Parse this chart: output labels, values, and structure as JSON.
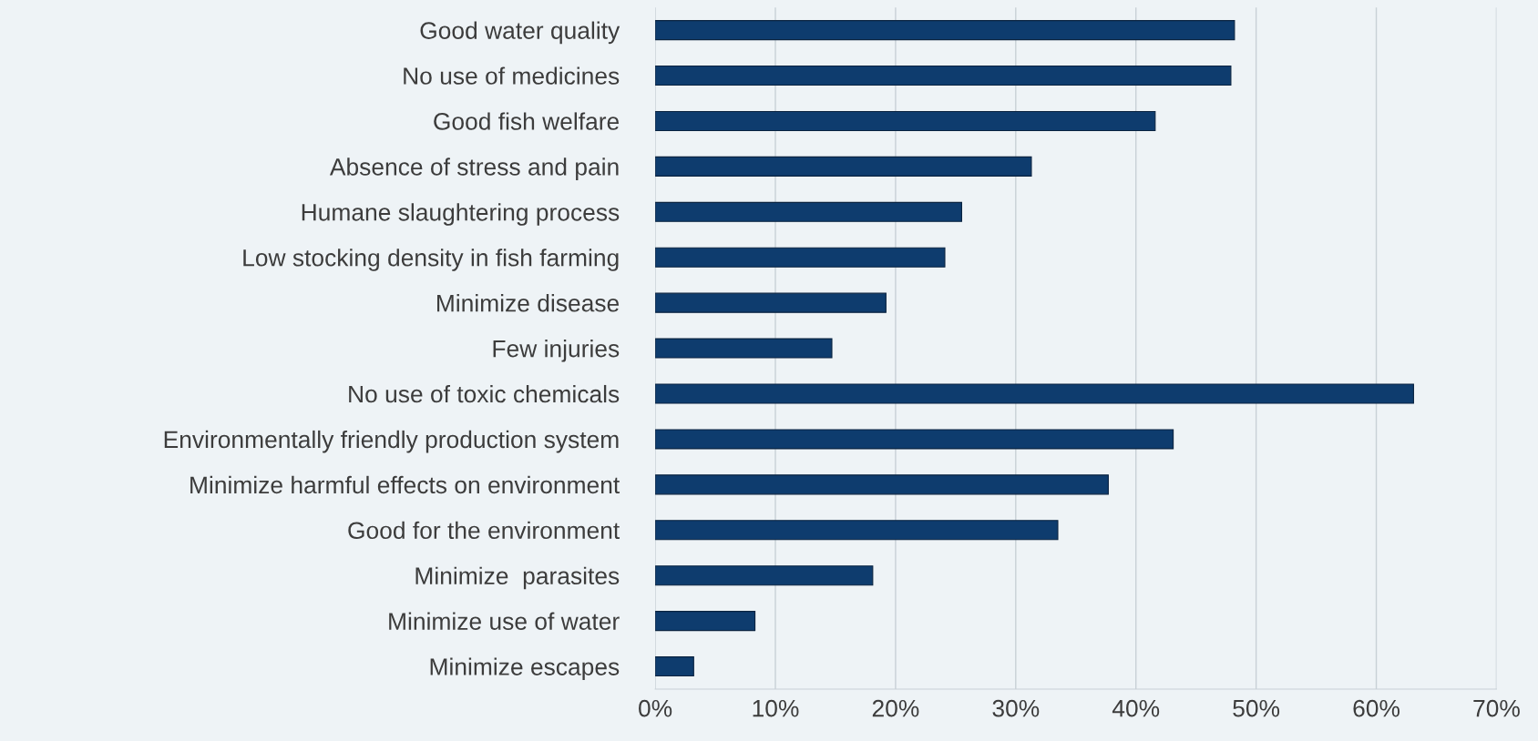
{
  "chart_data": {
    "type": "bar",
    "orientation": "horizontal",
    "categories": [
      "Good water quality",
      "No use of medicines",
      "Good fish welfare",
      "Absence of stress and pain",
      "Humane slaughtering process",
      "Low stocking density in fish farming",
      "Minimize disease",
      "Few injuries",
      "No use of toxic chemicals",
      "Environmentally friendly production system",
      "Minimize harmful effects on environment",
      "Good for the environment",
      "Minimize  parasites",
      "Minimize use of water",
      "Minimize escapes"
    ],
    "values": [
      48.2,
      47.9,
      41.6,
      31.3,
      25.5,
      24.1,
      19.2,
      14.7,
      63.1,
      43.1,
      37.7,
      33.5,
      18.1,
      8.3,
      3.2
    ],
    "color": "#0e3c6e",
    "xlim": [
      0,
      70
    ],
    "xticks": [
      {
        "value": 0,
        "label": "0%"
      },
      {
        "value": 10,
        "label": "10%"
      },
      {
        "value": 20,
        "label": "20%"
      },
      {
        "value": 30,
        "label": "30%"
      },
      {
        "value": 40,
        "label": "40%"
      },
      {
        "value": 50,
        "label": "50%"
      },
      {
        "value": 60,
        "label": "60%"
      },
      {
        "value": 70,
        "label": "70%"
      }
    ],
    "grid": "x"
  }
}
